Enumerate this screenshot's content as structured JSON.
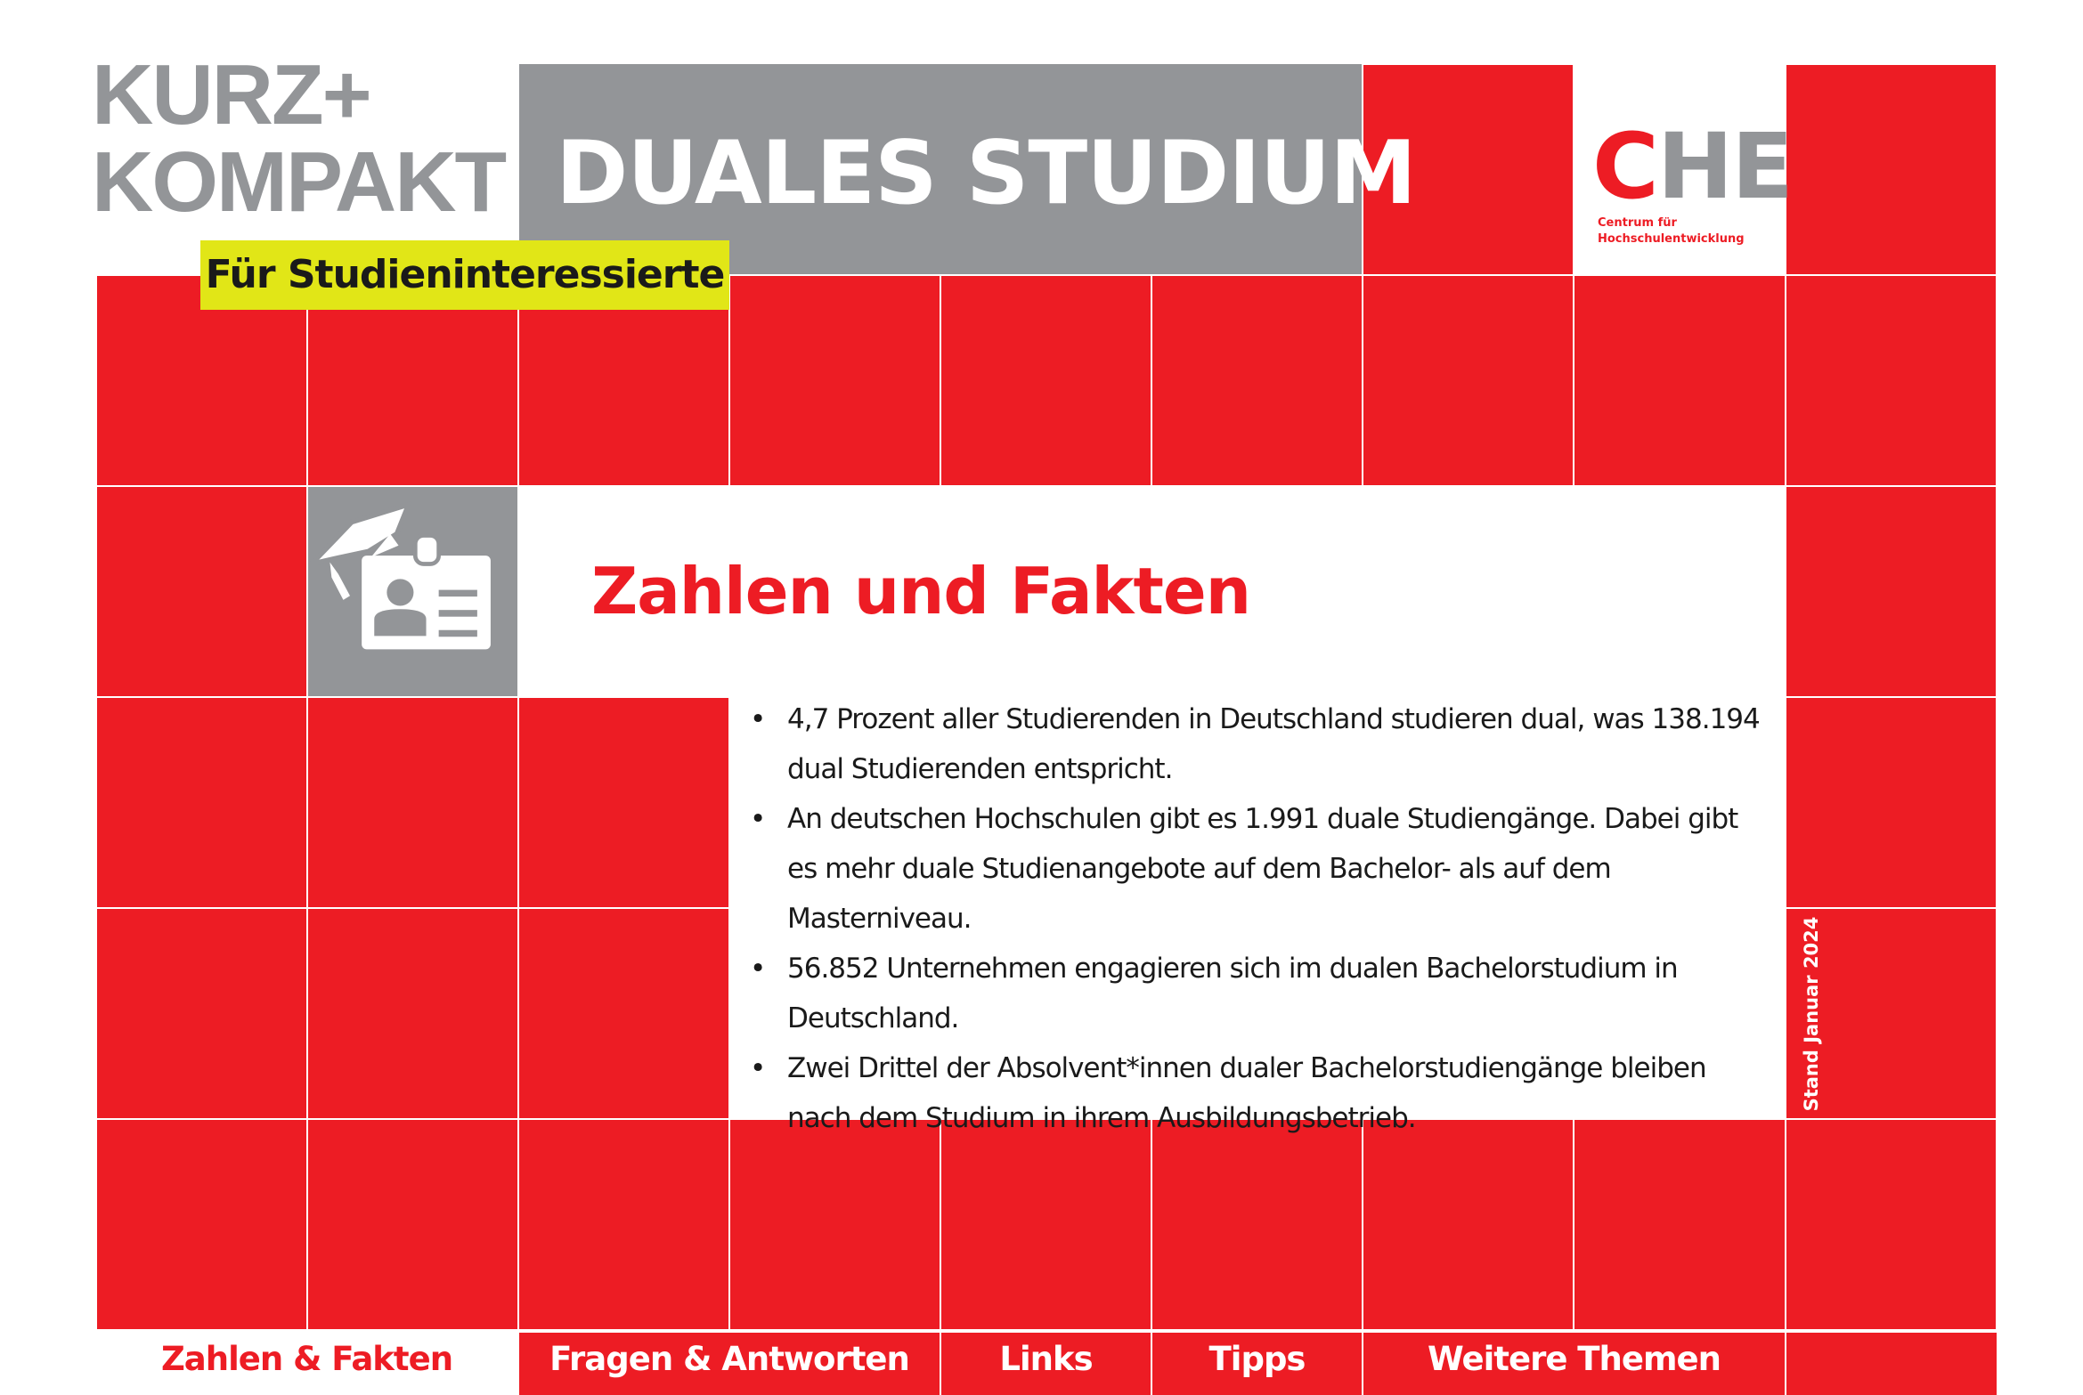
{
  "header": {
    "series_line1": "KURZ+",
    "series_line2": "KOMPAKT",
    "title": "DUALES STUDIUM",
    "audience": "Für Studieninteressierte"
  },
  "logo": {
    "letter_c": "C",
    "letters_he": "HE",
    "subline1": "Centrum für",
    "subline2": "Hochschulentwicklung"
  },
  "section": {
    "icon": "graduation-cap-id-card-icon",
    "title": "Zahlen und Fakten",
    "facts": [
      "4,7 Prozent aller Studierenden in Deutschland studieren dual, was 138.194 dual Studierenden entspricht.",
      "An deutschen Hochschulen gibt es 1.991 duale Studiengänge. Dabei gibt es mehr duale Studienangebote auf dem Bachelor- als auf dem Masterniveau.",
      "56.852 Unternehmen engagieren sich im dualen Bachelorstudium in Deutschland.",
      "Zwei Drittel der Absolvent*innen dualer Bachelorstudiengänge bleiben nach dem Studium in ihrem Ausbildungsbetrieb."
    ],
    "stand": "Stand Januar 2024"
  },
  "nav": {
    "items": [
      {
        "label": "Zahlen & Fakten",
        "active": true
      },
      {
        "label": "Fragen & Antworten"
      },
      {
        "label": "Links"
      },
      {
        "label": "Tipps"
      },
      {
        "label": "Weitere Themen"
      }
    ]
  },
  "colors": {
    "red": "#ED1C24",
    "gray": "#939598",
    "yellow": "#E1E617"
  }
}
